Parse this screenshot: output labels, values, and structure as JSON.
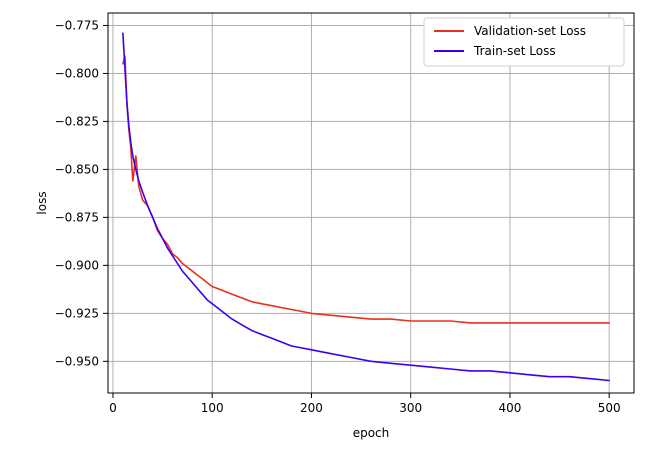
{
  "chart_data": {
    "type": "line",
    "title": "",
    "xlabel": "epoch",
    "ylabel": "loss",
    "xlim": [
      -5,
      525
    ],
    "ylim": [
      -0.9665,
      -0.7685
    ],
    "xticks": [
      0,
      100,
      200,
      300,
      400,
      500
    ],
    "yticks": [
      -0.95,
      -0.925,
      -0.9,
      -0.875,
      -0.85,
      -0.825,
      -0.8,
      -0.775
    ],
    "xtick_labels": [
      "0",
      "100",
      "200",
      "300",
      "400",
      "500"
    ],
    "ytick_labels": [
      "−0.950",
      "−0.925",
      "−0.900",
      "−0.875",
      "−0.850",
      "−0.825",
      "−0.800",
      "−0.775"
    ],
    "grid": true,
    "legend_position": "top-right",
    "series": [
      {
        "name": "Validation-set Loss",
        "color": "#e8301c",
        "x": [
          10,
          12,
          14,
          16,
          18,
          20,
          23,
          26,
          30,
          35,
          40,
          45,
          50,
          55,
          60,
          65,
          70,
          75,
          80,
          85,
          90,
          95,
          100,
          110,
          120,
          130,
          140,
          150,
          160,
          170,
          180,
          190,
          200,
          220,
          240,
          260,
          280,
          300,
          320,
          340,
          360,
          380,
          400,
          420,
          440,
          460,
          480,
          500
        ],
        "y": [
          -0.795,
          -0.791,
          -0.816,
          -0.829,
          -0.839,
          -0.856,
          -0.843,
          -0.859,
          -0.866,
          -0.869,
          -0.875,
          -0.882,
          -0.886,
          -0.889,
          -0.894,
          -0.896,
          -0.899,
          -0.901,
          -0.903,
          -0.905,
          -0.907,
          -0.909,
          -0.911,
          -0.913,
          -0.915,
          -0.917,
          -0.919,
          -0.92,
          -0.921,
          -0.922,
          -0.923,
          -0.924,
          -0.925,
          -0.926,
          -0.927,
          -0.928,
          -0.928,
          -0.929,
          -0.929,
          -0.929,
          -0.93,
          -0.93,
          -0.93,
          -0.93,
          -0.93,
          -0.93,
          -0.93,
          -0.93
        ]
      },
      {
        "name": "Train-set Loss",
        "color": "#3c00f0",
        "x": [
          10,
          12,
          14,
          16,
          18,
          20,
          23,
          26,
          30,
          35,
          40,
          45,
          50,
          55,
          60,
          65,
          70,
          75,
          80,
          85,
          90,
          95,
          100,
          110,
          120,
          130,
          140,
          150,
          160,
          170,
          180,
          190,
          200,
          220,
          240,
          260,
          280,
          300,
          320,
          340,
          360,
          380,
          400,
          420,
          440,
          460,
          480,
          500
        ],
        "y": [
          -0.779,
          -0.797,
          -0.815,
          -0.827,
          -0.836,
          -0.843,
          -0.85,
          -0.856,
          -0.862,
          -0.869,
          -0.875,
          -0.881,
          -0.886,
          -0.891,
          -0.895,
          -0.899,
          -0.903,
          -0.906,
          -0.909,
          -0.912,
          -0.915,
          -0.918,
          -0.92,
          -0.924,
          -0.928,
          -0.931,
          -0.934,
          -0.936,
          -0.938,
          -0.94,
          -0.942,
          -0.943,
          -0.944,
          -0.946,
          -0.948,
          -0.95,
          -0.951,
          -0.952,
          -0.953,
          -0.954,
          -0.955,
          -0.955,
          -0.956,
          -0.957,
          -0.958,
          -0.958,
          -0.959,
          -0.96
        ]
      }
    ]
  }
}
